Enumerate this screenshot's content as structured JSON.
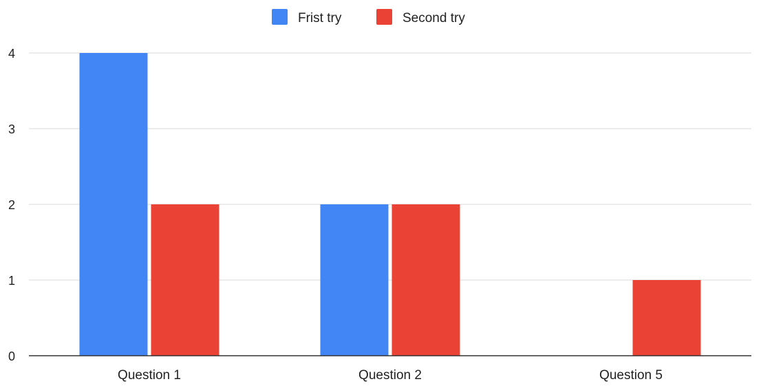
{
  "chart_data": {
    "type": "bar",
    "categories": [
      "Question 1",
      "Question 2",
      "Question 5"
    ],
    "series": [
      {
        "name": "Frist try",
        "values": [
          4,
          2,
          0
        ],
        "color": "#4285F4"
      },
      {
        "name": "Second try",
        "values": [
          2,
          2,
          1
        ],
        "color": "#EA4335"
      }
    ],
    "ylim": [
      0,
      4
    ],
    "yticks": [
      0,
      1,
      2,
      3,
      4
    ],
    "grid": true,
    "legend_position": "top-center",
    "title": "",
    "xlabel": "",
    "ylabel": ""
  }
}
